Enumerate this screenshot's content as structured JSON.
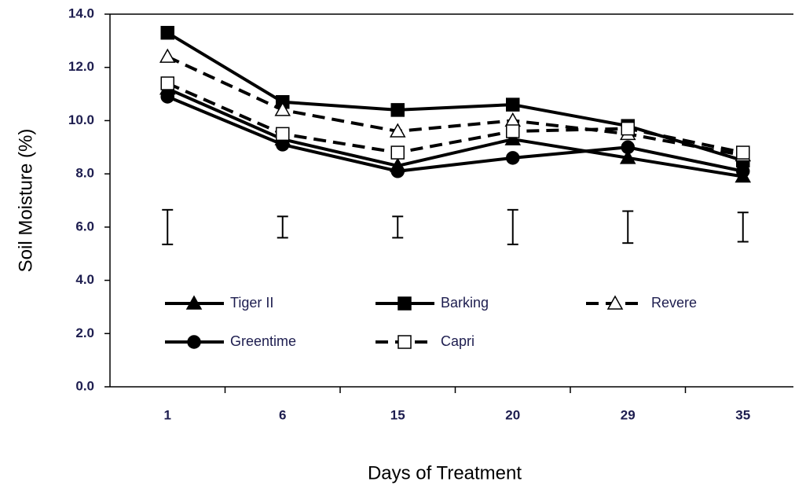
{
  "chart_data": {
    "type": "line",
    "y_label": "Soil Moisture (%)",
    "x_label": "Days of Treatment",
    "categories": [
      "1",
      "6",
      "15",
      "20",
      "29",
      "35"
    ],
    "ylim": [
      0,
      14
    ],
    "yticks": [
      {
        "value": 0,
        "label": "0.0"
      },
      {
        "value": 2,
        "label": "2.0"
      },
      {
        "value": 4,
        "label": "4.0"
      },
      {
        "value": 6,
        "label": "6.0"
      },
      {
        "value": 8,
        "label": "8.0"
      },
      {
        "value": 10,
        "label": "10.0"
      },
      {
        "value": 12,
        "label": "12.0"
      },
      {
        "value": 14,
        "label": "14.0"
      }
    ],
    "series": [
      {
        "name": "Tiger II",
        "color": "#000000",
        "marker": "triangle",
        "filled": true,
        "dashed": false,
        "values": [
          11.2,
          9.3,
          8.3,
          9.3,
          8.6,
          7.9
        ]
      },
      {
        "name": "Barking",
        "color": "#000000",
        "marker": "square",
        "filled": true,
        "dashed": false,
        "values": [
          13.3,
          10.7,
          10.4,
          10.6,
          9.8,
          8.5
        ]
      },
      {
        "name": "Revere",
        "color": "#000000",
        "marker": "triangle",
        "filled": false,
        "dashed": true,
        "values": [
          12.4,
          10.4,
          9.6,
          10.0,
          9.5,
          8.7
        ]
      },
      {
        "name": "Greentime",
        "color": "#000000",
        "marker": "circle",
        "filled": true,
        "dashed": false,
        "values": [
          10.9,
          9.1,
          8.1,
          8.6,
          9.0,
          8.1
        ]
      },
      {
        "name": "Capri",
        "color": "#000000",
        "marker": "square",
        "filled": false,
        "dashed": true,
        "values": [
          11.4,
          9.5,
          8.8,
          9.6,
          9.7,
          8.8
        ]
      }
    ],
    "error_bars": {
      "center": [
        6.0,
        6.0,
        6.0,
        6.0,
        6.0,
        6.0
      ],
      "errors": [
        0.65,
        0.4,
        0.4,
        0.65,
        0.6,
        0.55
      ]
    }
  }
}
